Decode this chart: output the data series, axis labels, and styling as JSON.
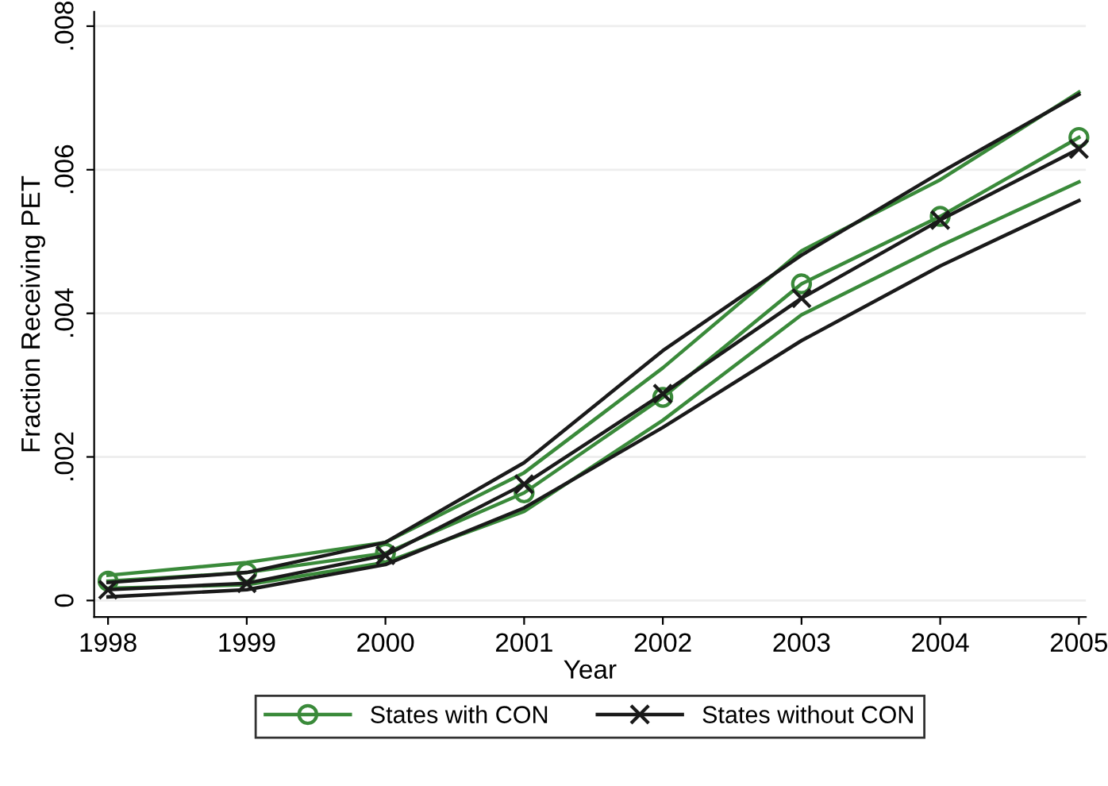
{
  "chart_data": {
    "type": "line",
    "xlabel": "Year",
    "ylabel": "Fraction Receiving PET",
    "x": [
      1998,
      1999,
      2000,
      2001,
      2002,
      2003,
      2004,
      2005
    ],
    "series": [
      {
        "name": "States with CON",
        "color": "#3a8a3a",
        "marker": "circle",
        "values": [
          0.00027,
          0.00039,
          0.00066,
          0.0015,
          0.00283,
          0.00441,
          0.00535,
          0.00645
        ]
      },
      {
        "color": "#3a8a3a",
        "values": [
          0.00017,
          0.00022,
          0.00053,
          0.00124,
          0.00251,
          0.00398,
          0.00494,
          0.00583
        ]
      },
      {
        "color": "#3a8a3a",
        "values": [
          0.00035,
          0.00053,
          0.00081,
          0.00178,
          0.00324,
          0.00487,
          0.00586,
          0.00708
        ]
      },
      {
        "name": "States without CON",
        "color": "#1a1a1a",
        "marker": "cross",
        "values": [
          0.00015,
          0.00024,
          0.00063,
          0.00162,
          0.00288,
          0.00421,
          0.0053,
          0.00629
        ]
      },
      {
        "color": "#1a1a1a",
        "values": [
          5e-05,
          0.00015,
          0.0005,
          0.00129,
          0.00241,
          0.00362,
          0.00466,
          0.00557
        ]
      },
      {
        "color": "#1a1a1a",
        "values": [
          0.00025,
          0.00039,
          0.00081,
          0.00192,
          0.00348,
          0.00481,
          0.00596,
          0.00705
        ]
      }
    ],
    "xlim": [
      1997.9,
      2005.05
    ],
    "xticks": [
      1998,
      1999,
      2000,
      2001,
      2002,
      2003,
      2004,
      2005
    ],
    "ylim": [
      -0.00023,
      0.0082
    ],
    "yticks": [
      {
        "value": 0,
        "label": "0"
      },
      {
        "value": 0.002,
        "label": ".002"
      },
      {
        "value": 0.004,
        "label": ".004"
      },
      {
        "value": 0.006,
        "label": ".006"
      },
      {
        "value": 0.008,
        "label": ".008"
      }
    ],
    "grid": "y",
    "legend": "bottom",
    "line_style": "solid"
  }
}
